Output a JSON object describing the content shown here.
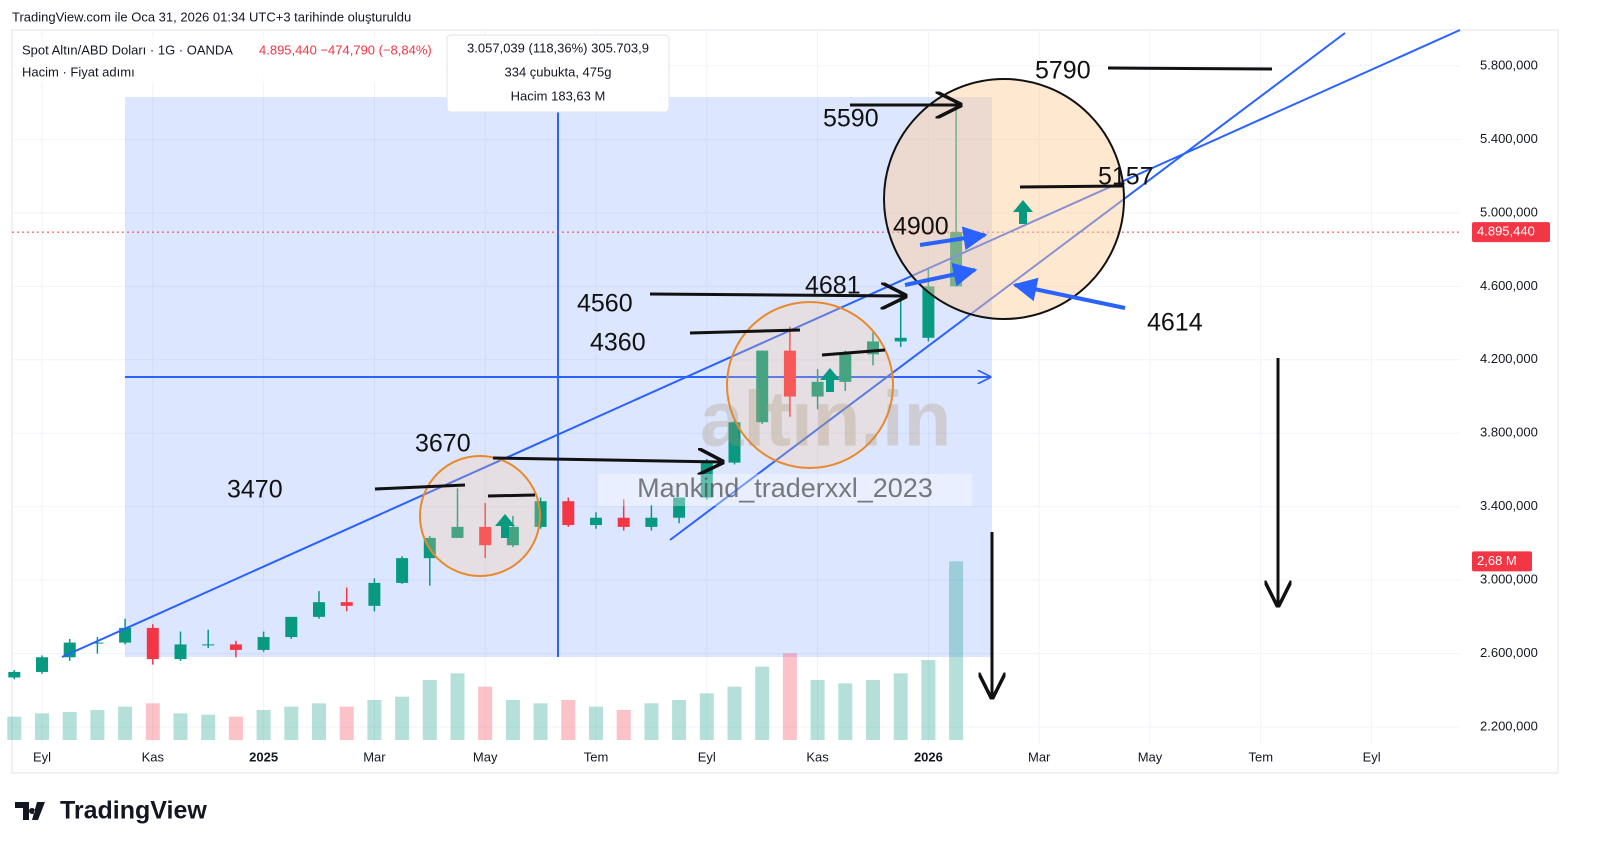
{
  "header": {
    "created": "TradingView.com ile Oca 31, 2026 01:34 UTC+3 tarihinde oluşturuldu"
  },
  "footer": {
    "brand": "TradingView"
  },
  "chart_data": {
    "type": "candlestick",
    "title": "Spot Altın/ABD Doları · 1G · OANDA",
    "price_change": "4.895,440 −474,790 (−8,84%)",
    "subtitle": "Hacim · Fiyat adımı",
    "measure": [
      "3.057,039 (118,36%) 305.703,9",
      "334 çubukta, 475g",
      "Hacim 183,63 M"
    ],
    "categories": [
      null,
      "Eyl",
      null,
      null,
      null,
      "Kas",
      null,
      null,
      null,
      "2025",
      null,
      null,
      null,
      "Mar",
      null,
      null,
      null,
      "May",
      null,
      null,
      null,
      "Tem",
      null,
      null,
      null,
      "Eyl",
      null,
      null,
      null,
      "Kas",
      null,
      null,
      null,
      "2026",
      null,
      null,
      null,
      "Mar",
      null,
      null,
      null,
      "May",
      null,
      null,
      null,
      "Tem",
      null,
      null,
      null,
      "Eyl",
      null,
      null
    ],
    "open": [
      2470,
      2500,
      2580,
      2660,
      2660,
      2740,
      2570,
      2650,
      2650,
      2620,
      2690,
      2800,
      2880,
      2860,
      2985,
      3120,
      3230,
      3290,
      3190,
      3290,
      3430,
      3300,
      3340,
      3290,
      3340,
      3450,
      3640,
      3860,
      4250,
      4000,
      4080,
      4230,
      4300,
      4320,
      4600,
      null,
      null,
      null,
      null,
      null,
      null,
      null,
      null,
      null,
      null,
      null,
      null,
      null,
      null,
      null,
      null,
      null
    ],
    "high": [
      2510,
      2590,
      2680,
      2690,
      2790,
      2760,
      2720,
      2730,
      2670,
      2720,
      2800,
      2940,
      2960,
      3010,
      3130,
      3240,
      3500,
      3420,
      3350,
      3450,
      3450,
      3370,
      3440,
      3410,
      3450,
      3660,
      3870,
      4250,
      4380,
      4150,
      4250,
      4350,
      4550,
      4700,
      5590,
      null,
      null,
      null,
      null,
      null,
      null,
      null,
      null,
      null,
      null,
      null,
      null,
      null,
      null,
      null,
      null,
      null
    ],
    "low": [
      2460,
      2490,
      2560,
      2600,
      2650,
      2540,
      2560,
      2630,
      2580,
      2610,
      2680,
      2790,
      2830,
      2830,
      2980,
      2970,
      3230,
      3120,
      3180,
      3280,
      3290,
      3280,
      3270,
      3270,
      3310,
      3440,
      3630,
      3850,
      3890,
      3930,
      4030,
      4170,
      4270,
      4300,
      4600,
      null,
      null,
      null,
      null,
      null,
      null,
      null,
      null,
      null,
      null,
      null,
      null,
      null,
      null,
      null,
      null,
      null
    ],
    "close": [
      2500,
      2580,
      2660,
      2660,
      2740,
      2570,
      2650,
      2650,
      2620,
      2690,
      2800,
      2880,
      2860,
      2985,
      3120,
      3230,
      3290,
      3190,
      3290,
      3430,
      3300,
      3340,
      3290,
      3340,
      3450,
      3640,
      3860,
      4250,
      4000,
      4080,
      4230,
      4300,
      4320,
      4600,
      4895.44,
      null,
      null,
      null,
      null,
      null,
      null,
      null,
      null,
      null,
      null,
      null,
      null,
      null,
      null,
      null,
      null,
      null
    ],
    "up_color": "#089981",
    "down_color": "#f23645",
    "ylim": [
      2100,
      6000
    ],
    "yticks": [
      {
        "value": 2200,
        "label": "2.200,000"
      },
      {
        "value": 2600,
        "label": "2.600,000"
      },
      {
        "value": 3000,
        "label": "3.000,000"
      },
      {
        "value": 3400,
        "label": "3.400,000"
      },
      {
        "value": 3800,
        "label": "3.800,000"
      },
      {
        "value": 4200,
        "label": "4.200,000"
      },
      {
        "value": 4600,
        "label": "4.600,000"
      },
      {
        "value": 5000,
        "label": "5.000,000"
      },
      {
        "value": 5400,
        "label": "5.400,000"
      },
      {
        "value": 5800,
        "label": "5.800,000"
      }
    ],
    "last_price": {
      "value": 4895.44,
      "label": "4.895,440"
    },
    "volume": {
      "axis": "y2",
      "values": [
        0.35,
        0.4,
        0.42,
        0.45,
        0.5,
        0.55,
        0.4,
        0.38,
        0.35,
        0.45,
        0.5,
        0.55,
        0.5,
        0.6,
        0.65,
        0.9,
        1.0,
        0.8,
        0.6,
        0.55,
        0.6,
        0.5,
        0.45,
        0.55,
        0.6,
        0.7,
        0.8,
        1.1,
        1.3,
        0.9,
        0.85,
        0.9,
        1.0,
        1.2,
        2.68,
        null,
        null,
        null,
        null,
        null,
        null,
        null,
        null,
        null,
        null,
        null,
        null,
        null,
        null,
        null,
        null,
        null
      ],
      "value_labels": [
        null,
        null,
        null,
        null,
        null,
        null,
        null,
        null,
        null,
        null,
        null,
        null,
        null,
        null,
        null,
        null,
        null,
        null,
        null,
        null,
        null,
        null,
        null,
        null,
        null,
        null,
        null,
        null,
        null,
        null,
        null,
        null,
        null,
        null,
        "2,68 M",
        null,
        null,
        null,
        null,
        null,
        null,
        null,
        null,
        null,
        null,
        null,
        null,
        null,
        null,
        null,
        null,
        null
      ]
    },
    "y2lim": [
      0,
      3
    ],
    "grid": true,
    "annotations": [
      "5790",
      "5590",
      "5157",
      "4900",
      "4681",
      "4560",
      "4614",
      "4360",
      "3670",
      "3470"
    ],
    "watermark": "altın.in",
    "signature": "Mankind_traderxxl_2023"
  }
}
